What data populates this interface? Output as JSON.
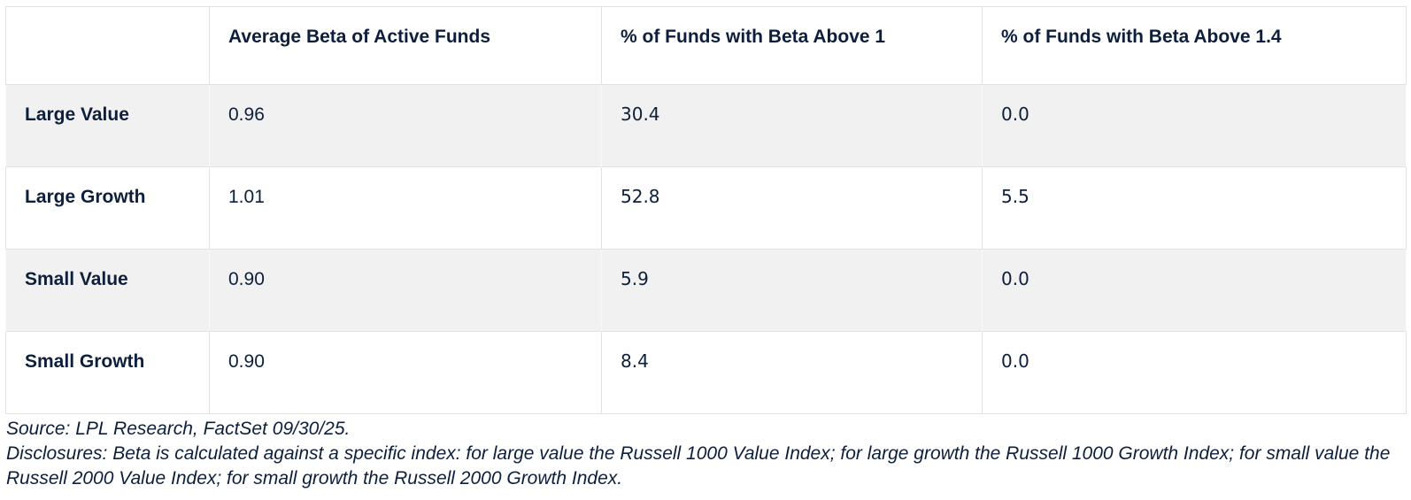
{
  "colors": {
    "text_navy": "#0d1f3c",
    "row_alt_bg": "#f1f1f1",
    "grid_border": "#e2e2e2",
    "grid_border_on_gray": "#fafafa",
    "background": "#ffffff"
  },
  "chart_data": {
    "type": "table",
    "columns": [
      "",
      "Average Beta of Active Funds",
      "% of Funds with Beta Above 1",
      "% of Funds with Beta Above 1.4"
    ],
    "rows": [
      {
        "label": "Large Value",
        "values": [
          "0.96",
          "30.4",
          "0.0"
        ]
      },
      {
        "label": "Large Growth",
        "values": [
          "1.01",
          "52.8",
          "5.5"
        ]
      },
      {
        "label": "Small Value",
        "values": [
          "0.90",
          "5.9",
          "0.0"
        ]
      },
      {
        "label": "Small Growth",
        "values": [
          "0.90",
          "8.4",
          "0.0"
        ]
      }
    ],
    "legend_position": "none",
    "grid": true
  },
  "notes": {
    "source": "Source: LPL Research, FactSet 09/30/25.",
    "disclosures": "Disclosures: Beta is calculated against a specific index: for large value the Russell 1000 Value Index; for large growth the Russell 1000 Growth Index; for small value the Russell 2000 Value Index; for small growth the Russell 2000 Growth Index."
  }
}
